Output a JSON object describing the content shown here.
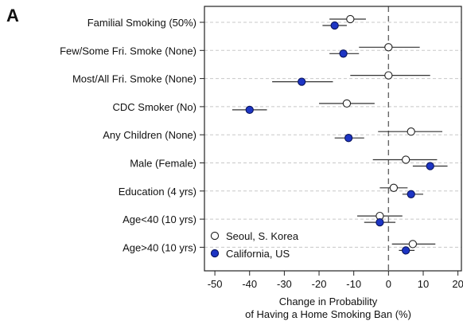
{
  "panel_label": "A",
  "chart_data": {
    "type": "scatter",
    "subtype": "forest-plot",
    "panel": "A",
    "categories": [
      "Familial Smoking (50%)",
      "Few/Some Fri. Smoke (None)",
      "Most/All Fri. Smoke (None)",
      "CDC Smoker (No)",
      "Any Children (None)",
      "Male (Female)",
      "Education (4 yrs)",
      "Age<40 (10 yrs)",
      "Age>40 (10 yrs)"
    ],
    "series": [
      {
        "name": "Seoul, S. Korea",
        "marker": "open-circle",
        "color": "#ffffff",
        "values": [
          -11,
          0,
          0,
          -12,
          6.5,
          5,
          1.5,
          -2.5,
          7
        ],
        "ci_low": [
          -17,
          -8.5,
          -11,
          -20,
          -3,
          -4.5,
          -2.5,
          -9,
          1
        ],
        "ci_high": [
          -6.5,
          9,
          12,
          -4,
          15.5,
          14,
          5.5,
          4,
          13.5
        ]
      },
      {
        "name": "California, US",
        "marker": "filled-circle",
        "color": "#1d35c4",
        "values": [
          -15.5,
          -13,
          -25,
          -40,
          -11.5,
          12,
          6.5,
          -2.5,
          5
        ],
        "ci_low": [
          -19,
          -17,
          -33.5,
          -45,
          -15.5,
          7,
          4,
          -7,
          3
        ],
        "ci_high": [
          -12,
          -8.5,
          -16,
          -35,
          -7,
          17,
          10,
          2,
          7.5
        ]
      }
    ],
    "xlabel": "Change in Probability\nof Having a Home Smoking Ban (%)",
    "ylabel": "",
    "xlim": [
      -53,
      21
    ],
    "xticks": [
      -50,
      -40,
      -30,
      -20,
      -10,
      0,
      10,
      20
    ],
    "reference_line": 0,
    "grid": "horizontal dashed",
    "legend_position": "bottom-left"
  }
}
